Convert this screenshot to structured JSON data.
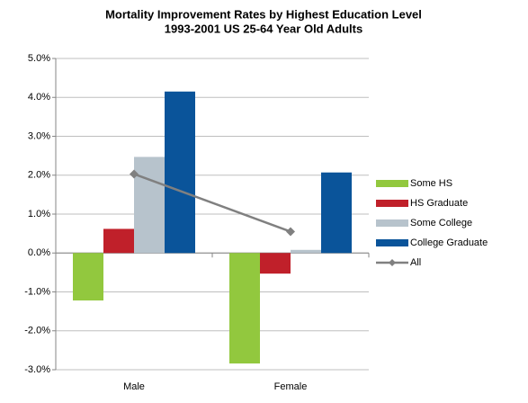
{
  "chart_data": {
    "type": "bar",
    "title": "Mortality Improvement Rates by Highest Education  Level",
    "subtitle": "1993-2001 US 25-64 Year Old Adults",
    "categories": [
      "Male",
      "Female"
    ],
    "series": [
      {
        "name": "Some HS",
        "color": "#92c83e",
        "values": [
          -1.22,
          -2.84
        ]
      },
      {
        "name": "HS Graduate",
        "color": "#c0202a",
        "values": [
          0.62,
          -0.53
        ]
      },
      {
        "name": "Some College",
        "color": "#b7c3cc",
        "values": [
          2.47,
          0.08
        ]
      },
      {
        "name": "College Graduate",
        "color": "#0a549a",
        "values": [
          4.15,
          2.07
        ]
      },
      {
        "name": "All",
        "color": "#808080",
        "type": "line",
        "values": [
          2.03,
          0.55
        ]
      }
    ],
    "ylim": [
      -3,
      5
    ],
    "yticks": [
      {
        "value": -3,
        "label": "-3.0%"
      },
      {
        "value": -2,
        "label": "-2.0%"
      },
      {
        "value": -1,
        "label": "-1.0%"
      },
      {
        "value": 0,
        "label": "0.0%"
      },
      {
        "value": 1,
        "label": "1.0%"
      },
      {
        "value": 2,
        "label": "2.0%"
      },
      {
        "value": 3,
        "label": "3.0%"
      },
      {
        "value": 4,
        "label": "4.0%"
      },
      {
        "value": 5,
        "label": "5.0%"
      }
    ],
    "grid": true,
    "legend": "right"
  }
}
